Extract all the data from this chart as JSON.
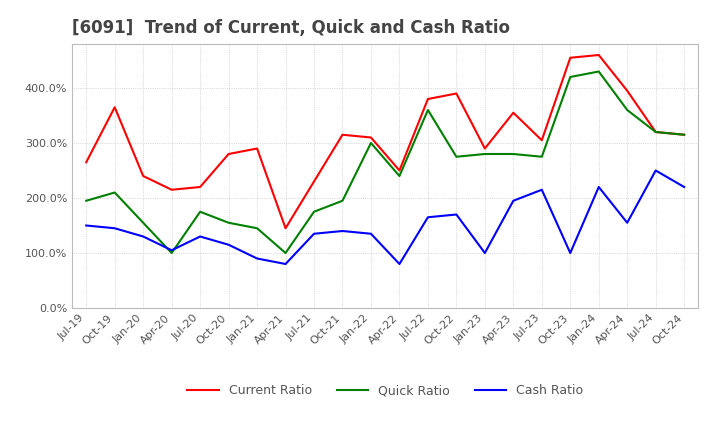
{
  "title": "[6091]  Trend of Current, Quick and Cash Ratio",
  "x_labels": [
    "Jul-19",
    "Oct-19",
    "Jan-20",
    "Apr-20",
    "Jul-20",
    "Oct-20",
    "Jan-21",
    "Apr-21",
    "Jul-21",
    "Oct-21",
    "Jan-22",
    "Apr-22",
    "Jul-22",
    "Oct-22",
    "Jan-23",
    "Apr-23",
    "Jul-23",
    "Oct-23",
    "Jan-24",
    "Apr-24",
    "Jul-24",
    "Oct-24"
  ],
  "current_ratio": [
    265,
    365,
    240,
    215,
    220,
    280,
    290,
    145,
    230,
    315,
    310,
    250,
    380,
    390,
    290,
    355,
    305,
    455,
    460,
    395,
    320,
    315
  ],
  "quick_ratio": [
    195,
    210,
    155,
    100,
    175,
    155,
    145,
    100,
    175,
    195,
    300,
    240,
    360,
    275,
    280,
    280,
    275,
    420,
    430,
    360,
    320,
    315
  ],
  "cash_ratio": [
    150,
    145,
    130,
    105,
    130,
    115,
    90,
    80,
    135,
    140,
    135,
    80,
    165,
    170,
    100,
    195,
    215,
    100,
    220,
    155,
    250,
    220
  ],
  "current_color": "#ff0000",
  "quick_color": "#008000",
  "cash_color": "#0000ff",
  "ylim": [
    0,
    480
  ],
  "yticks": [
    0,
    100,
    200,
    300,
    400
  ],
  "background_color": "#ffffff",
  "grid_color": "#bbbbbb",
  "title_fontsize": 12,
  "tick_fontsize": 8,
  "legend_fontsize": 9,
  "line_width": 1.5
}
